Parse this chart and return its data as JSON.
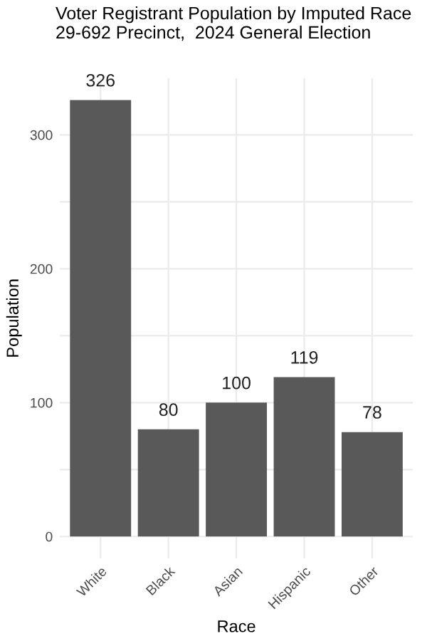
{
  "chart_data": {
    "type": "bar",
    "title": "Voter Registrant Population by Imputed Race\n29-692 Precinct,  2024 General Election",
    "xlabel": "Race",
    "ylabel": "Population",
    "categories": [
      "White",
      "Black",
      "Asian",
      "Hispanic",
      "Other"
    ],
    "values": [
      326,
      80,
      100,
      119,
      78
    ],
    "color": "#595959",
    "data_labels": true,
    "ylim": [
      -16.3,
      342.3
    ],
    "yticks": [
      0,
      {
        "value": 50,
        "label": null
      },
      100,
      {
        "value": 150,
        "label": null
      },
      200,
      {
        "value": 250,
        "label": null
      },
      300
    ],
    "grid": true,
    "legend": false
  }
}
